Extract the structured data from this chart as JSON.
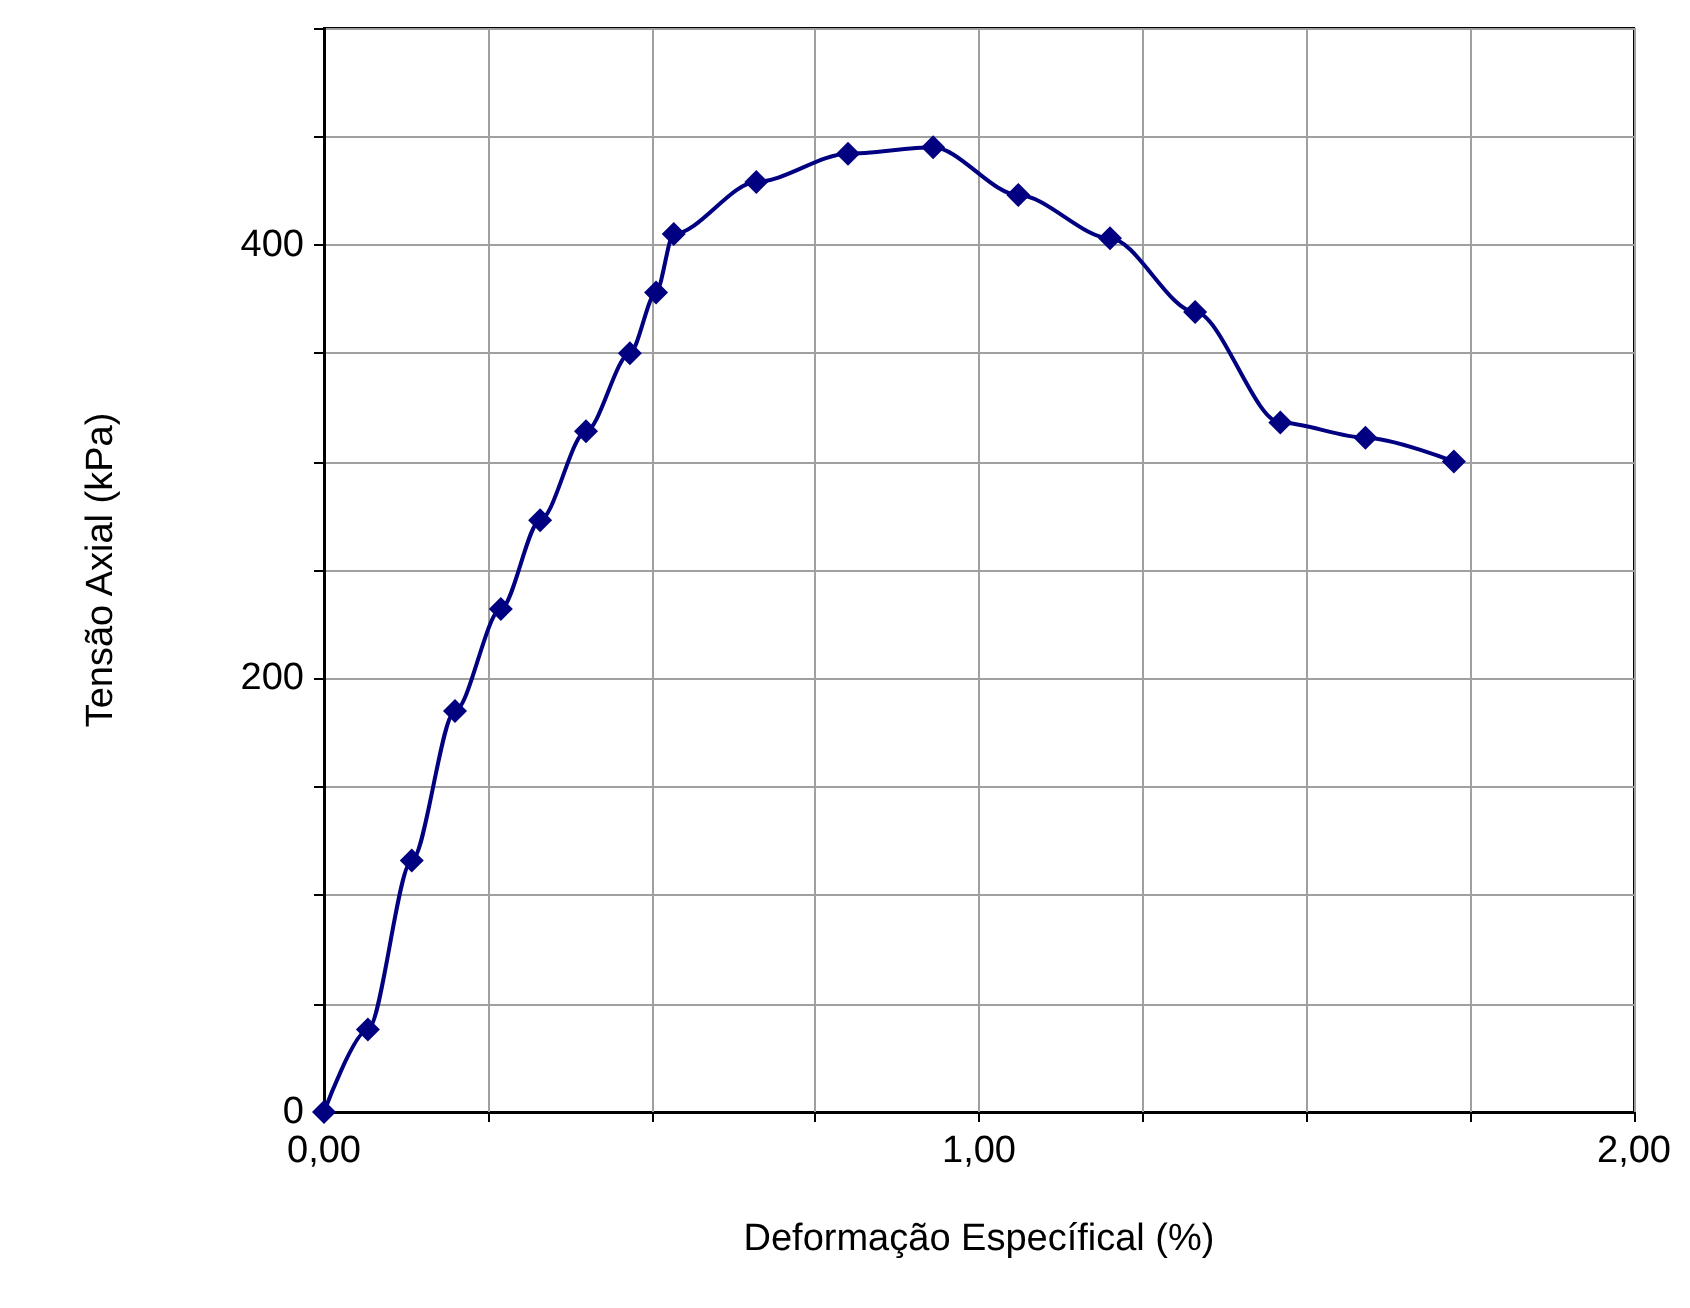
{
  "chart_data": {
    "type": "line",
    "xlabel": "Deformação Específical (%)",
    "ylabel": "Tensão Axial (kPa)",
    "x": [
      0,
      0.067,
      0.134,
      0.2,
      0.27,
      0.33,
      0.4,
      0.467,
      0.507,
      0.534,
      0.66,
      0.8,
      0.93,
      1.06,
      1.2,
      1.33,
      1.46,
      1.59,
      1.725
    ],
    "series": [
      {
        "color": "#000080",
        "values": [
          0,
          38,
          116,
          185,
          232,
          273,
          314,
          350,
          378,
          405,
          429,
          442,
          445,
          423,
          403,
          369,
          318,
          311,
          300
        ]
      }
    ],
    "xlim": [
      0,
      2
    ],
    "xticks": [
      {
        "value": 0,
        "label": "0,00"
      },
      {
        "value": 0.25,
        "label": null
      },
      {
        "value": 0.5,
        "label": null
      },
      {
        "value": 0.75,
        "label": null
      },
      {
        "value": 1,
        "label": "1,00"
      },
      {
        "value": 1.25,
        "label": null
      },
      {
        "value": 1.5,
        "label": null
      },
      {
        "value": 1.75,
        "label": null
      },
      {
        "value": 2,
        "label": "2,00"
      }
    ],
    "ylim": [
      0,
      500
    ],
    "yticks": [
      0,
      {
        "value": 50,
        "label": null
      },
      {
        "value": 100,
        "label": null
      },
      {
        "value": 150,
        "label": null
      },
      200,
      {
        "value": 250,
        "label": null
      },
      {
        "value": 300,
        "label": null
      },
      {
        "value": 350,
        "label": null
      },
      400,
      {
        "value": 450,
        "label": null
      },
      {
        "value": 500,
        "label": null
      }
    ],
    "grid": true,
    "marker": "diamond",
    "line_style": "solid"
  }
}
